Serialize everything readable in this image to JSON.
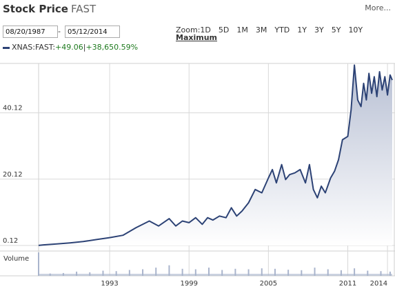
{
  "header": {
    "title": "Stock Price",
    "symbol": "FAST",
    "more_label": "More..."
  },
  "date_range": {
    "start": "08/20/1987",
    "separator": "-",
    "end": "05/12/2014"
  },
  "zoom": {
    "label": "Zoom:",
    "options": [
      "1D",
      "5D",
      "1M",
      "3M",
      "YTD",
      "1Y",
      "3Y",
      "5Y",
      "10Y"
    ],
    "maximum_label": "Maximum"
  },
  "legend": {
    "series_name": "XNAS:FAST:",
    "change": "+49.06",
    "separator": "|",
    "percent_change": "+38,650.59%"
  },
  "volume_label": "Volume",
  "colors": {
    "line": "#2c4275",
    "area_top": "#b7bfd3",
    "volume": "#a9b4cc",
    "gain": "#1e7a1e"
  },
  "chart_data": {
    "type": "area",
    "title": "",
    "xlabel": "",
    "ylabel": "",
    "ylim": [
      0.12,
      55
    ],
    "y_ticks": [
      "0.12",
      "20.12",
      "40.12"
    ],
    "x_ticks": [
      "1993",
      "1999",
      "2005",
      "2011",
      "2014"
    ],
    "x_range": [
      1987.63,
      2014.36
    ],
    "series": [
      {
        "x": [
          1987.63,
          1988.0,
          1989.0,
          1990.0,
          1991.0,
          1992.0,
          1993.0,
          1994.0,
          1995.0,
          1996.0,
          1996.7,
          1997.5,
          1998.0,
          1998.5,
          1999.0,
          1999.5,
          2000.0,
          2000.4,
          2000.8,
          2001.3,
          2001.8,
          2002.2,
          2002.6,
          2003.0,
          2003.5,
          2004.0,
          2004.5,
          2005.0,
          2005.3,
          2005.6,
          2006.0,
          2006.3,
          2006.6,
          2007.0,
          2007.4,
          2007.8,
          2008.1,
          2008.4,
          2008.7,
          2009.0,
          2009.3,
          2009.7,
          2010.0,
          2010.3,
          2010.6,
          2011.0,
          2011.25,
          2011.5,
          2011.75,
          2012.0,
          2012.2,
          2012.4,
          2012.6,
          2012.8,
          2013.0,
          2013.2,
          2013.4,
          2013.6,
          2013.8,
          2014.0,
          2014.2,
          2014.36
        ],
        "values": [
          0.15,
          0.3,
          0.6,
          0.9,
          1.3,
          1.9,
          2.5,
          3.2,
          5.5,
          7.5,
          6.0,
          8.2,
          6.0,
          7.5,
          7.0,
          8.5,
          6.5,
          8.5,
          7.8,
          9.0,
          8.5,
          11.5,
          9.0,
          10.5,
          13.0,
          17.0,
          16.0,
          20.5,
          23.0,
          19.0,
          24.5,
          20.0,
          21.5,
          22.0,
          23.0,
          19.0,
          24.5,
          17.0,
          14.5,
          18.0,
          16.0,
          20.5,
          22.5,
          26.0,
          32.0,
          33.0,
          41.0,
          54.5,
          44.0,
          42.0,
          49.0,
          44.0,
          52.0,
          46.0,
          51.0,
          45.0,
          52.5,
          47.0,
          51.0,
          45.5,
          51.5,
          50.0
        ]
      }
    ],
    "volume_ylim": [
      0,
      100
    ],
    "volume": {
      "x": [
        1987.63,
        1988.5,
        1989.5,
        1990.5,
        1991.5,
        1992.5,
        1993.5,
        1994.5,
        1995.5,
        1996.5,
        1997.5,
        1998.5,
        1999.5,
        2000.5,
        2001.5,
        2002.5,
        2003.5,
        2004.5,
        2005.5,
        2006.5,
        2007.5,
        2008.5,
        2009.5,
        2010.5,
        2011.5,
        2012.5,
        2013.5,
        2014.2
      ],
      "values": [
        100,
        10,
        12,
        18,
        15,
        22,
        20,
        25,
        28,
        35,
        45,
        30,
        28,
        35,
        25,
        30,
        28,
        32,
        30,
        26,
        24,
        35,
        28,
        24,
        32,
        22,
        20,
        18
      ]
    },
    "grid": true
  }
}
